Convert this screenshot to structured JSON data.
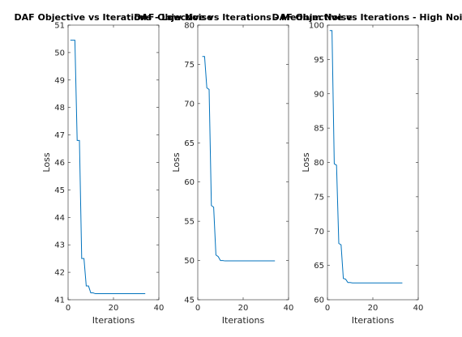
{
  "chart_data": [
    {
      "type": "line",
      "title": "DAF Objective vs Iterations - Low Noise",
      "xlabel": "Iterations",
      "ylabel": "Loss",
      "xlim": [
        0,
        40
      ],
      "ylim": [
        41,
        51
      ],
      "xticks": [
        "0",
        "20",
        "40"
      ],
      "yticks": [
        "41",
        "42",
        "43",
        "44",
        "45",
        "46",
        "47",
        "48",
        "49",
        "50",
        "51"
      ],
      "color": "#0072BD",
      "series": [
        {
          "x": [
            1,
            2,
            3,
            4,
            5,
            6,
            7,
            8,
            9,
            10,
            11,
            12,
            13,
            14,
            15,
            16,
            17,
            18,
            19,
            20,
            21,
            22,
            23,
            24,
            25,
            26,
            27,
            28,
            29,
            30,
            31,
            32,
            33,
            34
          ],
          "values": [
            50.45,
            50.45,
            50.45,
            46.8,
            46.8,
            42.5,
            42.5,
            41.5,
            41.5,
            41.25,
            41.25,
            41.22,
            41.22,
            41.22,
            41.22,
            41.22,
            41.22,
            41.22,
            41.22,
            41.22,
            41.22,
            41.22,
            41.22,
            41.22,
            41.22,
            41.22,
            41.22,
            41.22,
            41.22,
            41.22,
            41.22,
            41.22,
            41.22,
            41.22
          ]
        }
      ]
    },
    {
      "type": "line",
      "title": "DAF Objective vs Iterations - Medium Noise",
      "xlabel": "Iterations",
      "ylabel": "Loss",
      "xlim": [
        0,
        40
      ],
      "ylim": [
        45,
        80
      ],
      "xticks": [
        "0",
        "20",
        "40"
      ],
      "yticks": [
        "45",
        "50",
        "55",
        "60",
        "65",
        "70",
        "75",
        "80"
      ],
      "color": "#0072BD",
      "series": [
        {
          "x": [
            2,
            3,
            4,
            5,
            6,
            7,
            8,
            9,
            10,
            11,
            12,
            13,
            14,
            15,
            16,
            17,
            18,
            19,
            20,
            21,
            22,
            23,
            24,
            25,
            26,
            27,
            28,
            29,
            30,
            31,
            32,
            33,
            34
          ],
          "values": [
            76.0,
            76.0,
            72.0,
            71.8,
            57.0,
            56.8,
            50.7,
            50.5,
            50.0,
            50.0,
            49.95,
            49.95,
            49.95,
            49.95,
            49.95,
            49.95,
            49.95,
            49.95,
            49.95,
            49.95,
            49.95,
            49.95,
            49.95,
            49.95,
            49.95,
            49.95,
            49.95,
            49.95,
            49.95,
            49.95,
            49.95,
            49.95,
            49.95
          ]
        }
      ]
    },
    {
      "type": "line",
      "title": "DAF Objective vs Iterations - High Noise",
      "xlabel": "Iterations",
      "ylabel": "Loss",
      "xlim": [
        0,
        40
      ],
      "ylim": [
        60,
        100
      ],
      "xticks": [
        "0",
        "20",
        "40"
      ],
      "yticks": [
        "60",
        "65",
        "70",
        "75",
        "80",
        "85",
        "90",
        "95",
        "100"
      ],
      "color": "#0072BD",
      "series": [
        {
          "x": [
            1,
            2,
            3,
            4,
            5,
            6,
            7,
            8,
            9,
            10,
            11,
            12,
            13,
            14,
            15,
            16,
            17,
            18,
            19,
            20,
            21,
            22,
            23,
            24,
            25,
            26,
            27,
            28,
            29,
            30,
            31,
            32,
            33
          ],
          "values": [
            99.2,
            99.2,
            79.8,
            79.6,
            68.2,
            68.0,
            63.1,
            63.0,
            62.5,
            62.5,
            62.45,
            62.45,
            62.45,
            62.45,
            62.45,
            62.45,
            62.45,
            62.45,
            62.45,
            62.45,
            62.45,
            62.45,
            62.45,
            62.45,
            62.45,
            62.45,
            62.45,
            62.45,
            62.45,
            62.45,
            62.45,
            62.45,
            62.45
          ]
        }
      ]
    }
  ]
}
